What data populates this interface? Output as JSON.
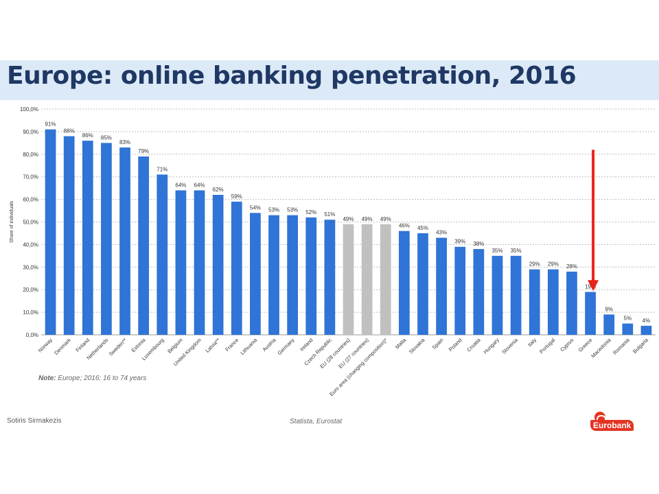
{
  "slide": {
    "title": "Europe: online banking penetration, 2016",
    "note_label": "Note:",
    "note_text": "Europe; 2016; 16 to 74 years",
    "author": "Sotiris Sirmakezis",
    "source": "Statista, Eurostat",
    "logo_text": "Eurobank"
  },
  "colors": {
    "bar": "#2f74d6",
    "bar_eu": "#c0c0c0",
    "arrow": "#e8231c",
    "title": "#1f3864"
  },
  "chart_data": {
    "type": "bar",
    "ylabel": "Share of individuals",
    "ylim": [
      0,
      100
    ],
    "yticks": [
      "0,0%",
      "10,0%",
      "20,0%",
      "30,0%",
      "40,0%",
      "50,0%",
      "60,0%",
      "70,0%",
      "80,0%",
      "90,0%",
      "100,0%"
    ],
    "grid": true,
    "categories": [
      "Norway",
      "Denmark",
      "Finland",
      "Netherlands",
      "Sweden**",
      "Estonia",
      "Luxembourg",
      "Belgium",
      "United Kingdom",
      "Latvia**",
      "France",
      "Lithuania",
      "Austria",
      "Germany",
      "Ireland",
      "Czech Republic",
      "EU (28 countries)",
      "EU (27 countries)",
      "Euro area (changing composition)*",
      "Malta",
      "Slovakia",
      "Spain",
      "Poland",
      "Croatia",
      "Hungary",
      "Slovenia",
      "Italy",
      "Portugal",
      "Cyprus",
      "Greece",
      "Macedonia",
      "Romania",
      "Bulgaria"
    ],
    "values": [
      91,
      88,
      86,
      85,
      83,
      79,
      71,
      64,
      64,
      62,
      59,
      54,
      53,
      53,
      52,
      51,
      49,
      49,
      49,
      46,
      45,
      43,
      39,
      38,
      35,
      35,
      29,
      29,
      28,
      19,
      9,
      5,
      4
    ],
    "data_labels": [
      "91%",
      "88%",
      "86%",
      "85%",
      "83%",
      "79%",
      "71%",
      "64%",
      "64%",
      "62%",
      "59%",
      "54%",
      "53%",
      "53%",
      "52%",
      "51%",
      "49%",
      "49%",
      "49%",
      "46%",
      "45%",
      "43%",
      "39%",
      "38%",
      "35%",
      "35%",
      "29%",
      "29%",
      "28%",
      "19%",
      "9%",
      "5%",
      "4%"
    ],
    "highlight_gray": [
      "EU (28 countries)",
      "EU (27 countries)",
      "Euro area (changing composition)*"
    ],
    "annotation": {
      "type": "arrow",
      "target": "Greece",
      "from_value": 82,
      "to_value": 20
    }
  }
}
